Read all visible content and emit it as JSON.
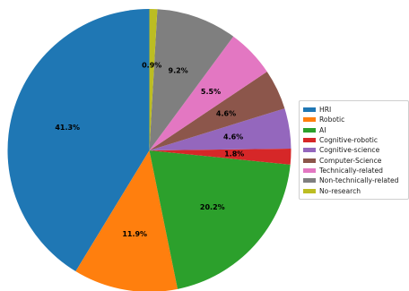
{
  "chart_data": {
    "type": "pie",
    "startangle_deg": 90,
    "direction": "counterclockwise",
    "slices": [
      {
        "label": "HRI",
        "value": 41.3,
        "pct_label": "41.3%",
        "color": "#1f77b4"
      },
      {
        "label": "Robotic",
        "value": 11.9,
        "pct_label": "11.9%",
        "color": "#ff7f0e"
      },
      {
        "label": "AI",
        "value": 20.2,
        "pct_label": "20.2%",
        "color": "#2ca02c"
      },
      {
        "label": "Cognitive-robotic",
        "value": 1.8,
        "pct_label": "1.8%",
        "color": "#d62728"
      },
      {
        "label": "Cognitive-science",
        "value": 4.6,
        "pct_label": "4.6%",
        "color": "#9467bd"
      },
      {
        "label": "Computer-Science",
        "value": 4.6,
        "pct_label": "4.6%",
        "color": "#8c564b"
      },
      {
        "label": "Technically-related",
        "value": 5.5,
        "pct_label": "5.5%",
        "color": "#e377c2"
      },
      {
        "label": "Non-technically-related",
        "value": 9.2,
        "pct_label": "9.2%",
        "color": "#7f7f7f"
      },
      {
        "label": "No-research",
        "value": 0.9,
        "pct_label": "0.9%",
        "color": "#bcbd22"
      }
    ],
    "legend_position": "right"
  }
}
